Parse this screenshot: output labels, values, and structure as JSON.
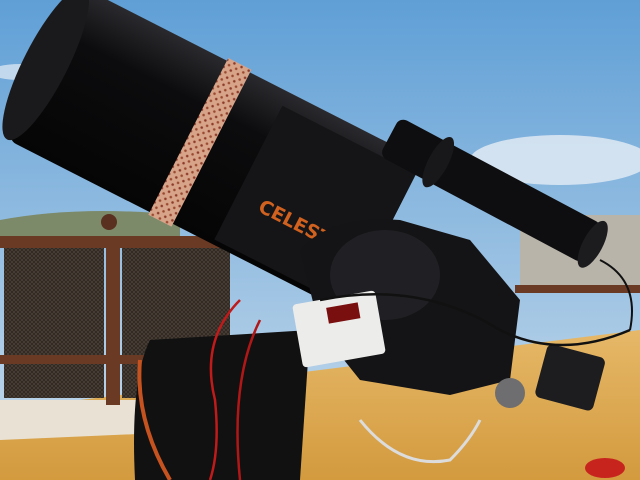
{
  "image": {
    "brand_label": "CELESTRON"
  }
}
